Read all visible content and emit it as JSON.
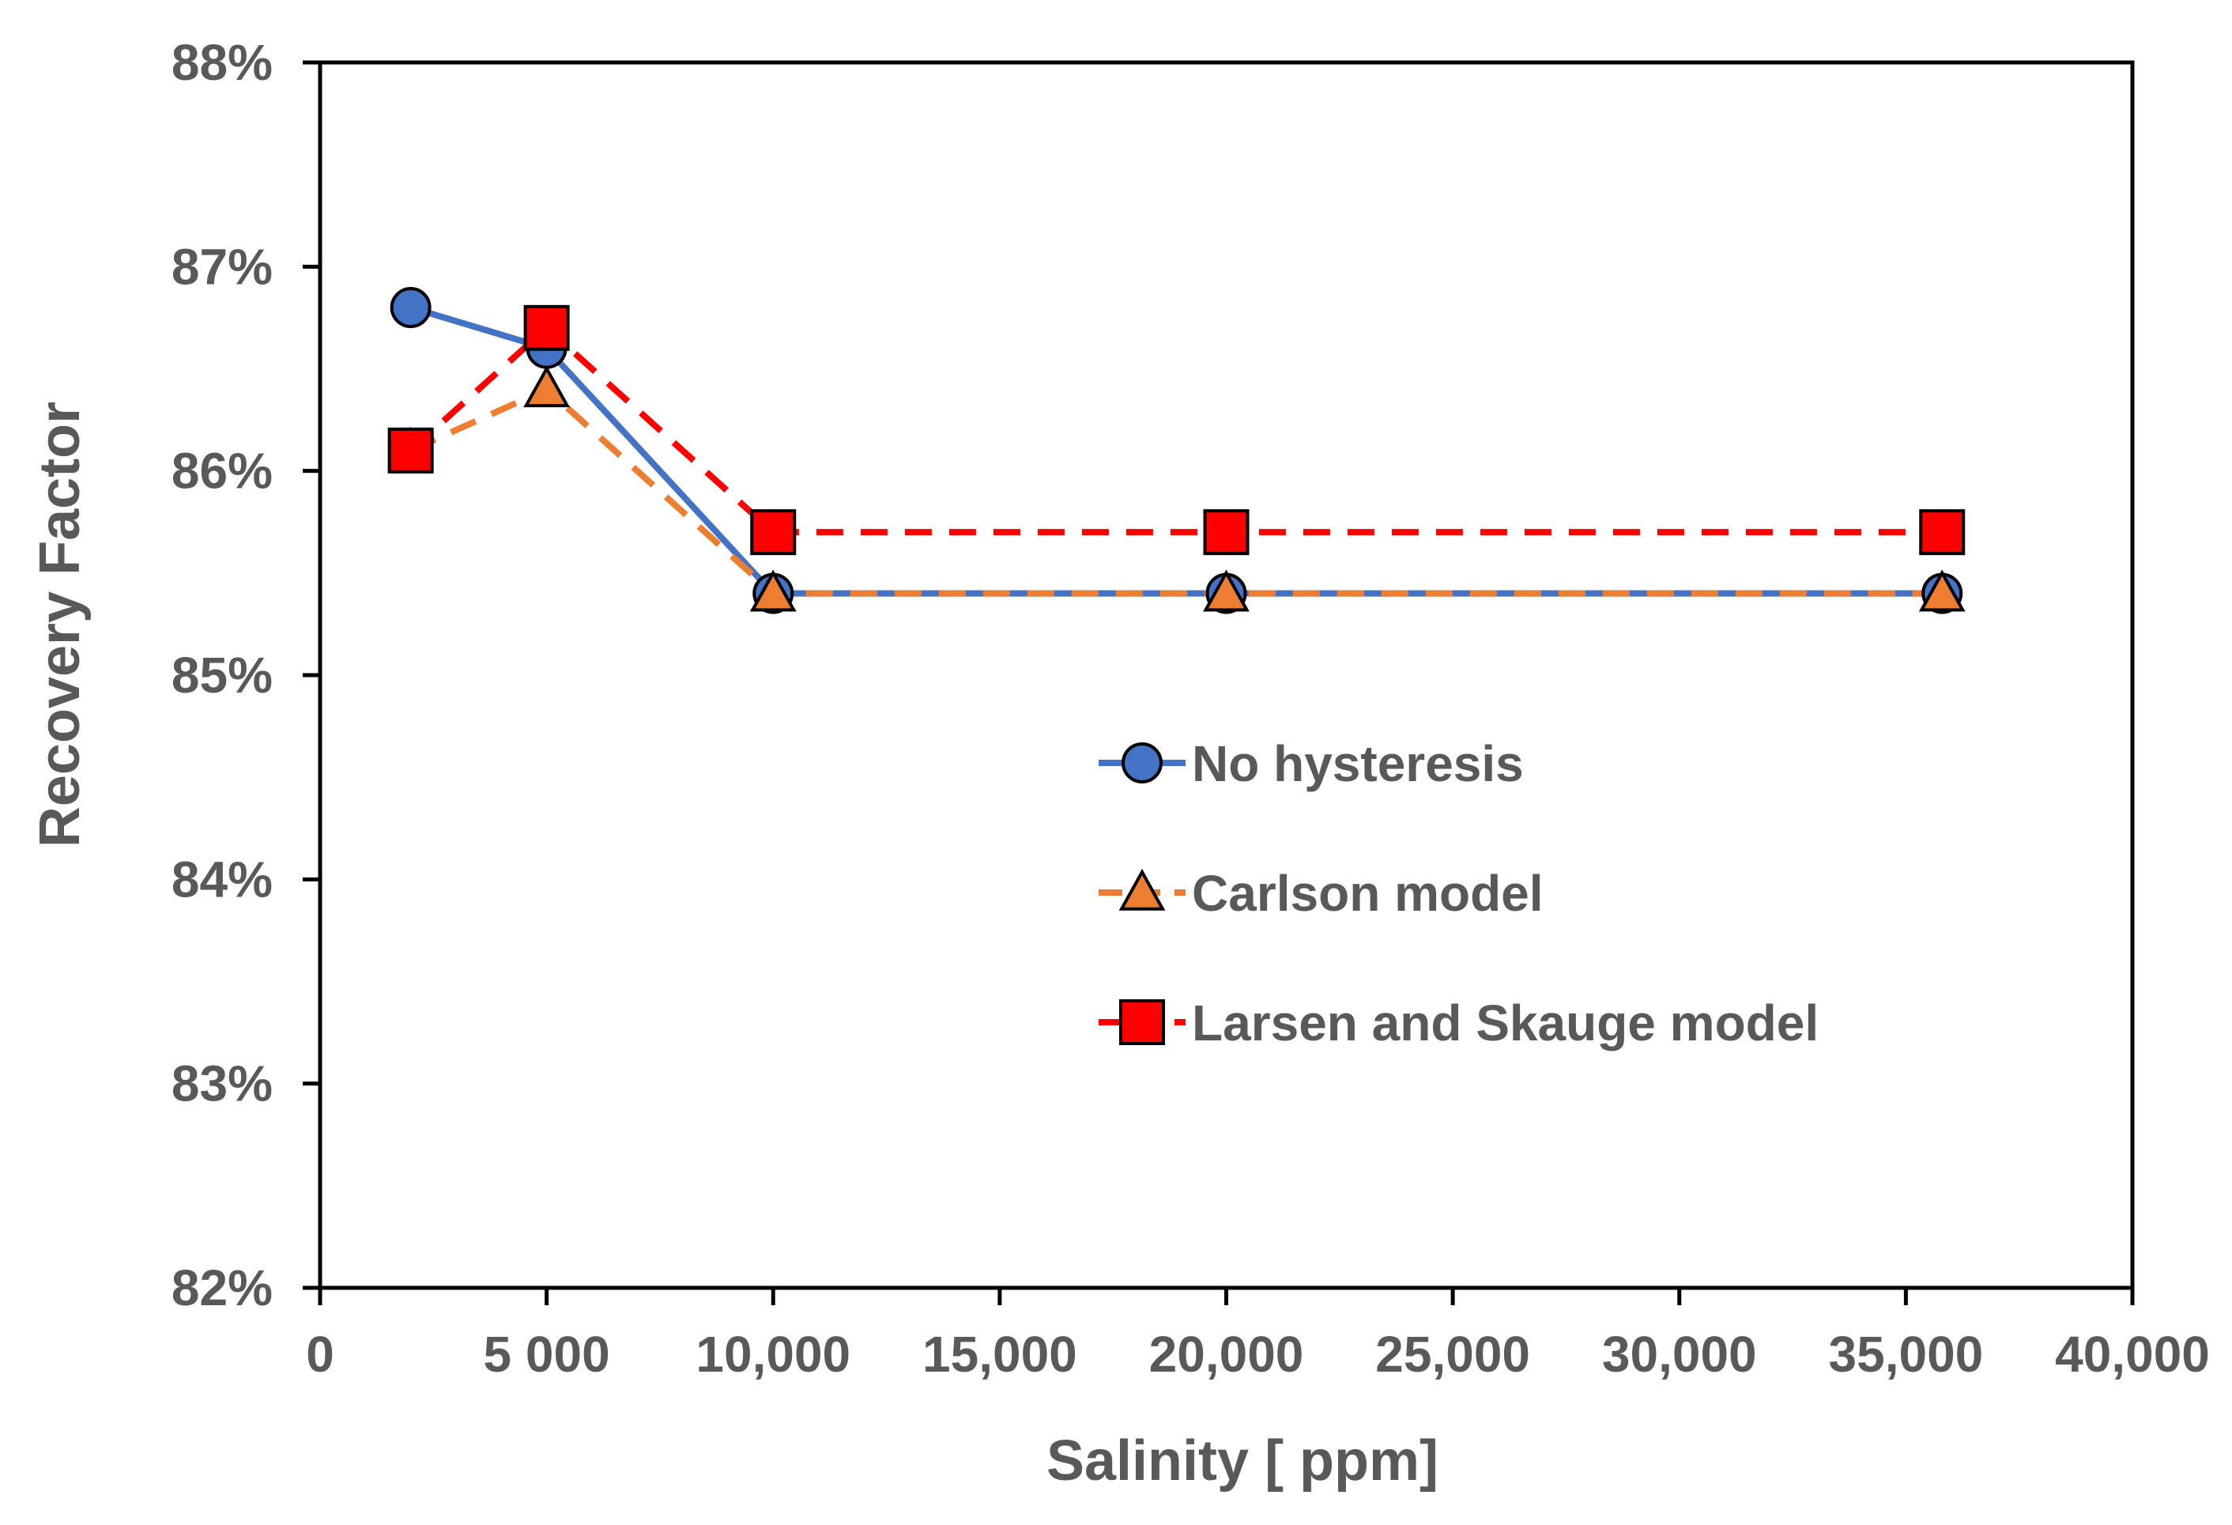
{
  "chart_data": {
    "type": "line",
    "title": "",
    "xlabel": "Salinity [ ppm]",
    "ylabel": "Recovery Factor",
    "xlim": [
      0,
      40000
    ],
    "ylim": [
      82,
      88
    ],
    "x_ticks": [
      0,
      5000,
      10000,
      15000,
      20000,
      25000,
      30000,
      35000,
      40000
    ],
    "x_tick_labels": [
      "0",
      "5 000",
      "10,000",
      "15,000",
      "20,000",
      "25,000",
      "30,000",
      "35,000",
      "40,000"
    ],
    "y_ticks": [
      82,
      83,
      84,
      85,
      86,
      87,
      88
    ],
    "y_tick_labels": [
      "82%",
      "83%",
      "84%",
      "85%",
      "86%",
      "87%",
      "88%"
    ],
    "grid": false,
    "legend_position": "center-right",
    "x": [
      2000,
      5000,
      10000,
      20000,
      35800
    ],
    "series": [
      {
        "name": "No hysteresis",
        "values": [
          86.8,
          86.6,
          85.4,
          85.4,
          85.4
        ],
        "color": "#4472C4",
        "marker": "circle",
        "marker_fill": "#4472C4",
        "dash": "solid"
      },
      {
        "name": "Carlson model",
        "values": [
          86.1,
          86.4,
          85.4,
          85.4,
          85.4
        ],
        "color": "#ED7D31",
        "marker": "triangle",
        "marker_fill": "#ED7D31",
        "dash": "dashed"
      },
      {
        "name": "Larsen and Skauge model",
        "values": [
          86.1,
          86.7,
          85.7,
          85.7,
          85.7
        ],
        "color": "#FF0000",
        "marker": "square",
        "marker_fill": "#FF0000",
        "dash": "dashed"
      }
    ]
  }
}
